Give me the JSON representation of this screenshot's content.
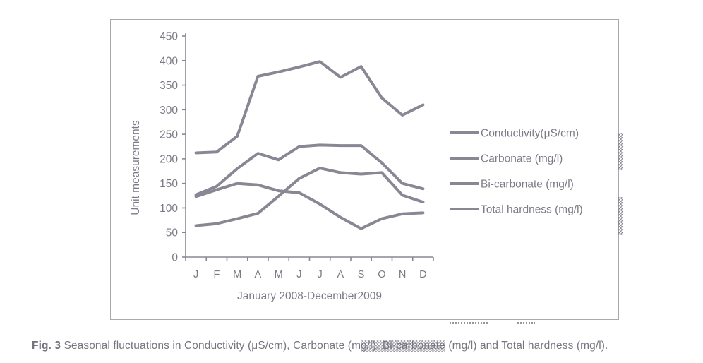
{
  "figure": {
    "caption": {
      "label_bold": "Fig. 3",
      "text_before_highlight": " Seasonal fluctuations in Conductivity (μS/cm), Carbonate (m",
      "highlighted_text": "g/l). Bi-carbonate",
      "text_after_highlight": " (mg/l) and Total hardness (mg/l)."
    }
  },
  "chart_data": {
    "type": "line",
    "title": "",
    "xlabel": "January 2008-December2009",
    "ylabel": "Unit measurements",
    "categories": [
      "J",
      "F",
      "M",
      "A",
      "M",
      "J",
      "J",
      "A",
      "S",
      "O",
      "N",
      "D"
    ],
    "ylim": [
      0,
      450
    ],
    "yticks": [
      0,
      50,
      100,
      150,
      200,
      250,
      300,
      350,
      400,
      450
    ],
    "grid": false,
    "legend_position": "right",
    "series_color": "#8a8794",
    "axis_color": "#8a8794",
    "text_color": "#7c7a86",
    "series": [
      {
        "name": "Conductivity(μS/cm)",
        "values": [
          212,
          214,
          246,
          368,
          377,
          387,
          398,
          366,
          388,
          324,
          289,
          310
        ]
      },
      {
        "name": "Carbonate (mg/l)",
        "values": [
          127,
          144,
          180,
          211,
          198,
          225,
          228,
          227,
          227,
          192,
          150,
          139
        ]
      },
      {
        "name": "Bi-carbonate (mg/l)",
        "values": [
          123,
          137,
          150,
          147,
          135,
          131,
          108,
          81,
          58,
          78,
          88,
          90
        ]
      },
      {
        "name": "Total hardness (mg/l)",
        "values": [
          64,
          68,
          78,
          89,
          124,
          160,
          181,
          172,
          169,
          172,
          126,
          112
        ]
      }
    ]
  }
}
